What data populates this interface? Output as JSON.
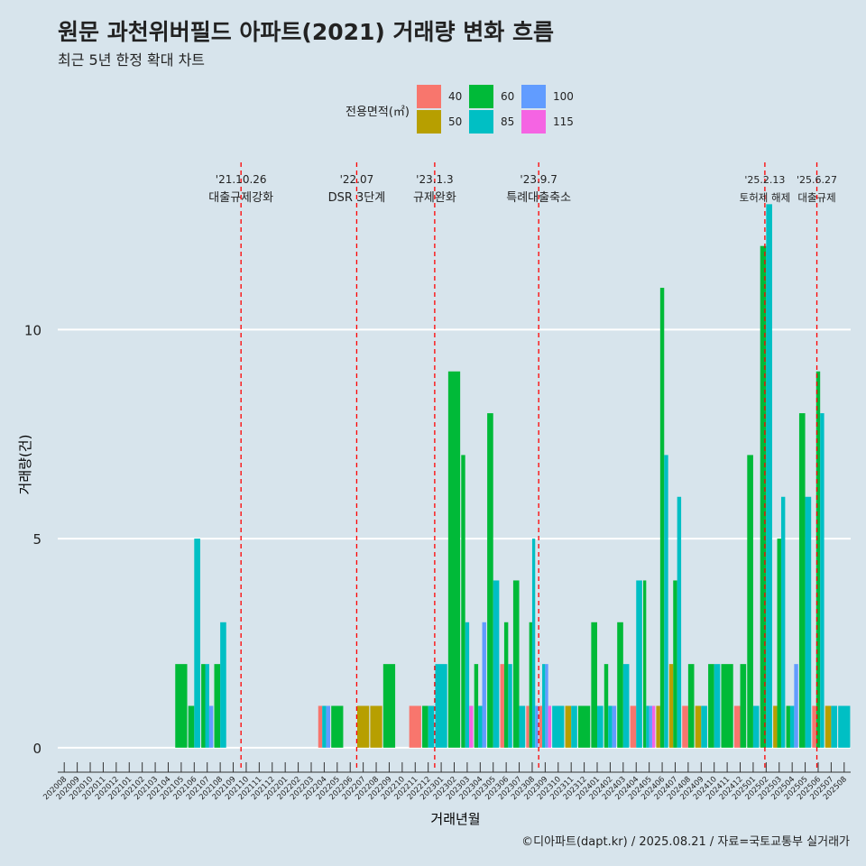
{
  "title": "원문 과천위버필드 아파트(2021) 거래량 변화 흐름",
  "subtitle": "최근 5년 한정 확대 차트",
  "caption": "©디아파트(dapt.kr) / 2025.08.21 / 자료=국토교통부 실거래가",
  "chart_data": {
    "type": "bar",
    "xlabel": "거래년월",
    "ylabel": "거래량(건)",
    "yticks": [
      0,
      5,
      10
    ],
    "ylim": [
      -0.5,
      14
    ],
    "legend": {
      "title": "전용면적(㎡)",
      "placement": "top",
      "entries": [
        {
          "name": "40",
          "color": "#f8766d"
        },
        {
          "name": "50",
          "color": "#b79f00"
        },
        {
          "name": "60",
          "color": "#00ba38"
        },
        {
          "name": "85",
          "color": "#00bfc4"
        },
        {
          "name": "100",
          "color": "#619cff"
        },
        {
          "name": "115",
          "color": "#f564e3"
        }
      ]
    },
    "categories": [
      "202008",
      "202009",
      "202010",
      "202011",
      "202012",
      "202101",
      "202102",
      "202103",
      "202104",
      "202105",
      "202106",
      "202107",
      "202108",
      "202109",
      "202110",
      "202111",
      "202112",
      "202201",
      "202202",
      "202203",
      "202204",
      "202205",
      "202206",
      "202207",
      "202208",
      "202209",
      "202210",
      "202211",
      "202212",
      "202301",
      "202302",
      "202303",
      "202304",
      "202305",
      "202306",
      "202307",
      "202308",
      "202309",
      "202310",
      "202311",
      "202312",
      "202401",
      "202402",
      "202403",
      "202404",
      "202405",
      "202406",
      "202407",
      "202408",
      "202409",
      "202410",
      "202411",
      "202412",
      "202501",
      "202502",
      "202503",
      "202504",
      "202505",
      "202506",
      "202507",
      "202508"
    ],
    "series": [
      {
        "name": "40",
        "color": "#f8766d",
        "values": [
          0,
          0,
          0,
          0,
          0,
          0,
          0,
          0,
          0,
          0,
          0,
          0,
          0,
          0,
          0,
          0,
          0,
          0,
          0,
          0,
          1,
          0,
          0,
          0,
          0,
          0,
          0,
          1,
          0,
          0,
          0,
          0,
          0,
          0,
          2,
          0,
          1,
          1,
          0,
          0,
          0,
          0,
          0,
          0,
          1,
          0,
          0,
          0,
          1,
          0,
          0,
          0,
          1,
          0,
          0,
          0,
          0,
          0,
          1,
          0,
          0
        ]
      },
      {
        "name": "50",
        "color": "#b79f00",
        "values": [
          0,
          0,
          0,
          0,
          0,
          0,
          0,
          0,
          0,
          0,
          0,
          0,
          0,
          0,
          0,
          0,
          0,
          0,
          0,
          0,
          0,
          0,
          0,
          1,
          1,
          0,
          0,
          0,
          0,
          0,
          0,
          0,
          0,
          0,
          0,
          0,
          0,
          0,
          0,
          1,
          0,
          0,
          0,
          0,
          0,
          0,
          1,
          2,
          0,
          1,
          0,
          0,
          0,
          0,
          0,
          1,
          0,
          0,
          0,
          1,
          0
        ]
      },
      {
        "name": "60",
        "color": "#00ba38",
        "values": [
          0,
          0,
          0,
          0,
          0,
          0,
          0,
          0,
          0,
          2,
          1,
          2,
          2,
          0,
          0,
          0,
          0,
          0,
          0,
          0,
          0,
          1,
          0,
          0,
          0,
          2,
          0,
          0,
          1,
          0,
          9,
          7,
          2,
          8,
          3,
          4,
          3,
          0,
          0,
          0,
          1,
          3,
          2,
          3,
          0,
          4,
          11,
          4,
          2,
          0,
          2,
          2,
          2,
          7,
          12,
          5,
          1,
          8,
          9,
          0,
          0
        ]
      },
      {
        "name": "85",
        "color": "#00bfc4",
        "values": [
          0,
          0,
          0,
          0,
          0,
          0,
          0,
          0,
          0,
          0,
          5,
          2,
          3,
          0,
          0,
          0,
          0,
          0,
          0,
          0,
          1,
          0,
          0,
          0,
          0,
          0,
          0,
          0,
          1,
          2,
          0,
          3,
          1,
          4,
          2,
          1,
          5,
          2,
          1,
          1,
          0,
          1,
          1,
          2,
          4,
          1,
          7,
          6,
          0,
          1,
          2,
          0,
          0,
          1,
          13,
          6,
          1,
          6,
          8,
          1,
          1
        ]
      },
      {
        "name": "100",
        "color": "#619cff",
        "values": [
          0,
          0,
          0,
          0,
          0,
          0,
          0,
          0,
          0,
          0,
          0,
          1,
          0,
          0,
          0,
          0,
          0,
          0,
          0,
          0,
          1,
          0,
          0,
          0,
          0,
          0,
          0,
          0,
          0,
          0,
          0,
          0,
          3,
          0,
          0,
          0,
          1,
          2,
          0,
          0,
          0,
          0,
          1,
          0,
          0,
          1,
          0,
          0,
          0,
          0,
          0,
          0,
          0,
          0,
          0,
          0,
          2,
          0,
          0,
          0,
          0
        ]
      },
      {
        "name": "115",
        "color": "#f564e3",
        "values": [
          0,
          0,
          0,
          0,
          0,
          0,
          0,
          0,
          0,
          0,
          0,
          0,
          0,
          0,
          0,
          0,
          0,
          0,
          0,
          0,
          0,
          0,
          0,
          0,
          0,
          0,
          0,
          0,
          0,
          0,
          0,
          1,
          0,
          0,
          0,
          0,
          0,
          1,
          0,
          0,
          0,
          0,
          0,
          0,
          0,
          1,
          0,
          0,
          0,
          0,
          0,
          0,
          0,
          0,
          0,
          0,
          0,
          0,
          0,
          0,
          0
        ]
      }
    ],
    "annotations": [
      {
        "x": 14.1,
        "date": "'21.10.26",
        "text": "대출규제강화"
      },
      {
        "x": 23.0,
        "date": "'22.07",
        "text": "DSR 3단계"
      },
      {
        "x": 29.0,
        "date": "'23.1.3",
        "text": "규제완화"
      },
      {
        "x": 37.0,
        "date": "'23.9.7",
        "text": "특례대출축소"
      },
      {
        "x": 54.4,
        "date": "'25.2.13",
        "text": "토허제 해제"
      },
      {
        "x": 58.4,
        "date": "'25.6.27",
        "text": "대출규제"
      }
    ]
  }
}
